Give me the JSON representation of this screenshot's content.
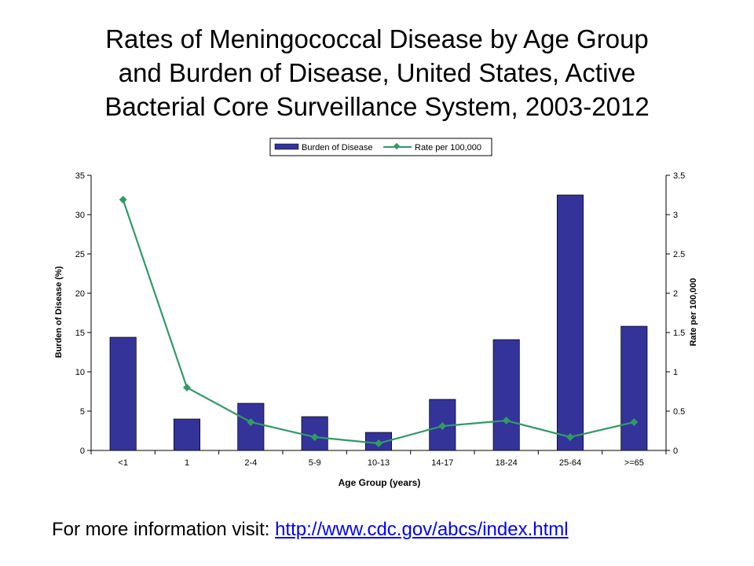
{
  "slide": {
    "title_lines": [
      "Rates of Meningococcal Disease by Age Group",
      "and Burden of Disease, United States, Active",
      "Bacterial Core Surveillance System, 2003-2012"
    ],
    "footer_text": "For more information visit: ",
    "footer_link": "http://www.cdc.gov/abcs/index.html"
  },
  "chart_data": {
    "type": "bar",
    "title": "",
    "xlabel": "Age Group (years)",
    "ylabel": "Burden of Disease (%)",
    "y2label": "Rate per 100,000",
    "categories": [
      "<1",
      "1",
      "2-4",
      "5-9",
      "10-13",
      "14-17",
      "18-24",
      "25-64",
      ">=65"
    ],
    "ylim": [
      0,
      35
    ],
    "y_ticks": [
      0,
      5,
      10,
      15,
      20,
      25,
      30,
      35
    ],
    "y2lim": [
      0,
      3.5
    ],
    "y2_ticks": [
      0,
      0.5,
      1,
      1.5,
      2,
      2.5,
      3,
      3.5
    ],
    "legend_position": "top",
    "grid": false,
    "series": [
      {
        "name": "Burden of Disease",
        "type": "bar",
        "axis": "left",
        "color": "#333399",
        "values": [
          14.4,
          4.0,
          6.0,
          4.3,
          2.3,
          6.5,
          14.1,
          32.5,
          15.8
        ]
      },
      {
        "name": "Rate per 100,000",
        "type": "line",
        "axis": "right",
        "color": "#339966",
        "values": [
          3.19,
          0.8,
          0.36,
          0.17,
          0.09,
          0.31,
          0.38,
          0.17,
          0.36
        ]
      }
    ]
  }
}
